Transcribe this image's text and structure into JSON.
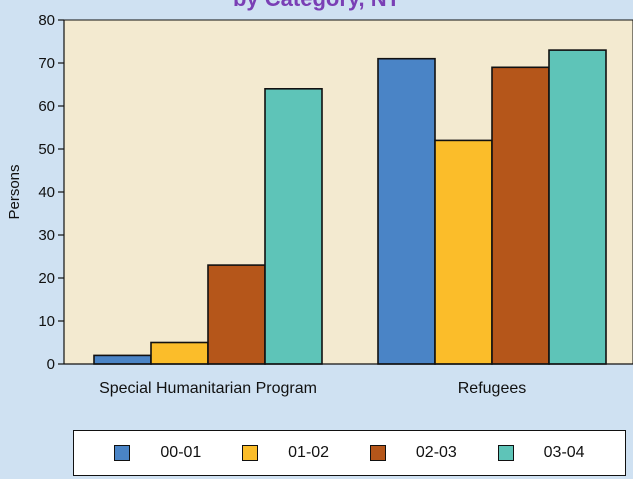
{
  "chart_data": {
    "type": "bar",
    "title": "by Category, NT",
    "ylabel": "Persons",
    "xlabel": "",
    "ylim": [
      0,
      80
    ],
    "yticks": [
      0,
      10,
      20,
      30,
      40,
      50,
      60,
      70,
      80
    ],
    "categories": [
      "Special Humanitarian Program",
      "Refugees"
    ],
    "series": [
      {
        "name": "00-01",
        "color": "#4a84c6",
        "values": [
          2,
          71
        ]
      },
      {
        "name": "01-02",
        "color": "#fbbd2a",
        "values": [
          5,
          52
        ]
      },
      {
        "name": "02-03",
        "color": "#b5561a",
        "values": [
          23,
          69
        ]
      },
      {
        "name": "03-04",
        "color": "#5ec4b8",
        "values": [
          64,
          73
        ]
      }
    ],
    "grid": false,
    "legend_position": "bottom",
    "plot_background": "#f3ead0",
    "page_background": "#cfe1f2"
  }
}
